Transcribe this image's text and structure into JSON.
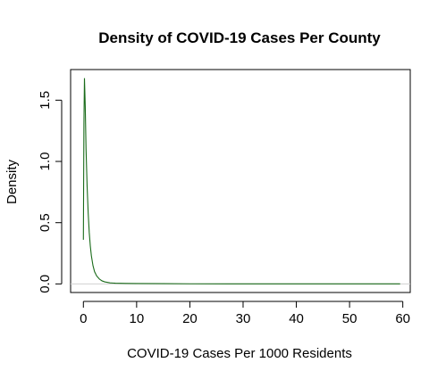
{
  "chart_data": {
    "type": "line",
    "title": "Density of COVID-19 Cases Per County",
    "xlabel": "COVID-19 Cases Per 1000 Residents",
    "ylabel": "Density",
    "xlim": [
      -2.4,
      61.4
    ],
    "ylim": [
      -0.07,
      1.75
    ],
    "x_ticks": [
      0,
      10,
      20,
      30,
      40,
      50,
      60
    ],
    "x_tick_labels": [
      "0",
      "10",
      "20",
      "30",
      "40",
      "50",
      "60"
    ],
    "y_ticks": [
      0,
      0.5,
      1.0,
      1.5
    ],
    "y_tick_labels": [
      "0.0",
      "0.5",
      "1.0",
      "1.5"
    ],
    "grid": false,
    "baseline": 0,
    "series": [
      {
        "color": "#1a6b1a",
        "x": [
          0.0,
          0.1,
          0.2,
          0.35,
          0.5,
          0.7,
          0.9,
          1.1,
          1.3,
          1.5,
          1.8,
          2.1,
          2.5,
          3.0,
          3.5,
          4.0,
          5.0,
          6.0,
          8.0,
          10.0,
          15.0,
          20.0,
          30.0,
          40.0,
          50.0,
          59.5
        ],
        "y": [
          0.36,
          1.3,
          1.68,
          1.45,
          1.1,
          0.8,
          0.58,
          0.42,
          0.31,
          0.23,
          0.15,
          0.1,
          0.065,
          0.04,
          0.025,
          0.017,
          0.009,
          0.006,
          0.004,
          0.003,
          0.002,
          0.001,
          0.0008,
          0.0005,
          0.0003,
          0.0002
        ]
      }
    ]
  }
}
